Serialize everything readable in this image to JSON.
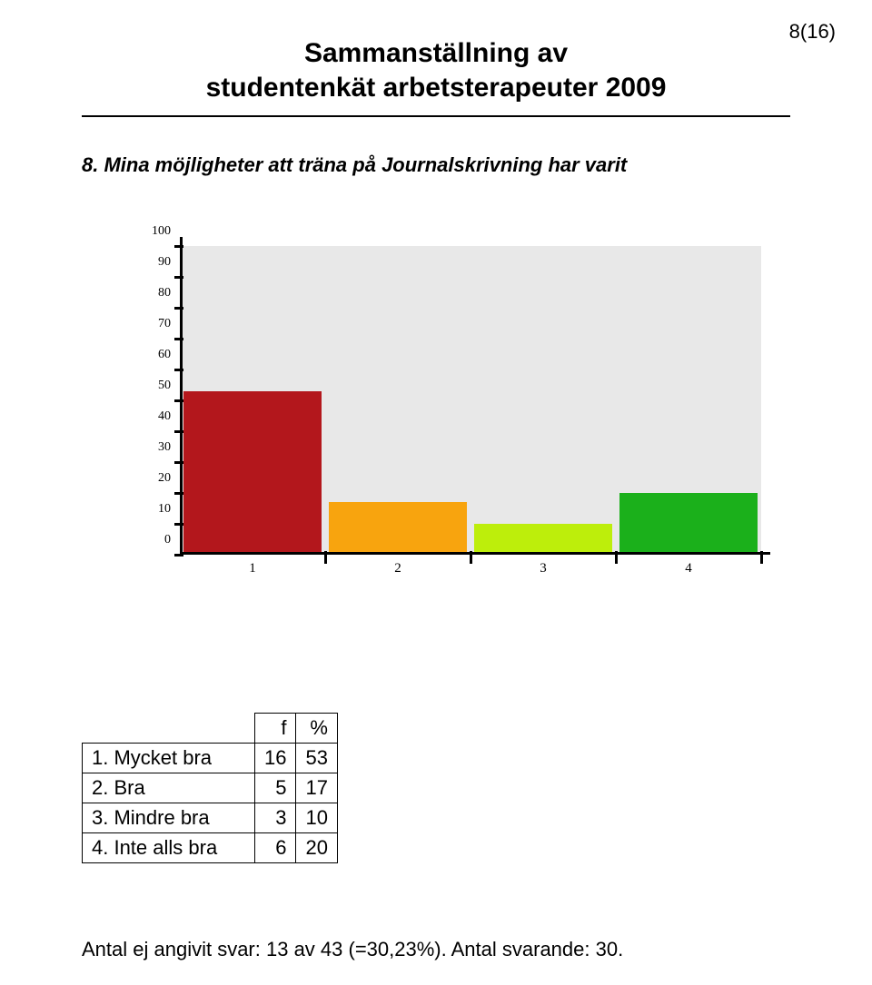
{
  "page_number": "8(16)",
  "title_line1": "Sammanställning av",
  "title_line2": "studentenkät arbetsterapeuter 2009",
  "question": "8. Mina möjligheter att träna på Journalskrivning har varit",
  "chart": {
    "type": "bar",
    "background_color": "#e8e8e8",
    "axis_color": "#000000",
    "ylim": [
      0,
      100
    ],
    "ytick_step": 10,
    "yticks": [
      0,
      10,
      20,
      30,
      40,
      50,
      60,
      70,
      80,
      90,
      100
    ],
    "categories": [
      "1",
      "2",
      "3",
      "4"
    ],
    "values": [
      53,
      17,
      10,
      20
    ],
    "bar_colors": [
      "#b3171c",
      "#f8a40e",
      "#bdee0b",
      "#1bb01b"
    ],
    "bar_width": 0.95,
    "tick_label_fontsize": 14,
    "tick_label_color": "#000000"
  },
  "table": {
    "columns": [
      "",
      "f",
      "%"
    ],
    "rows": [
      {
        "label": "1. Mycket bra",
        "f": "16",
        "pct": "53"
      },
      {
        "label": "2. Bra",
        "f": "5",
        "pct": "17"
      },
      {
        "label": "3. Mindre bra",
        "f": "3",
        "pct": "10"
      },
      {
        "label": "4. Inte alls bra",
        "f": "6",
        "pct": "20"
      }
    ]
  },
  "footer": "Antal ej angivit svar: 13 av 43 (=30,23%). Antal svarande:  30."
}
